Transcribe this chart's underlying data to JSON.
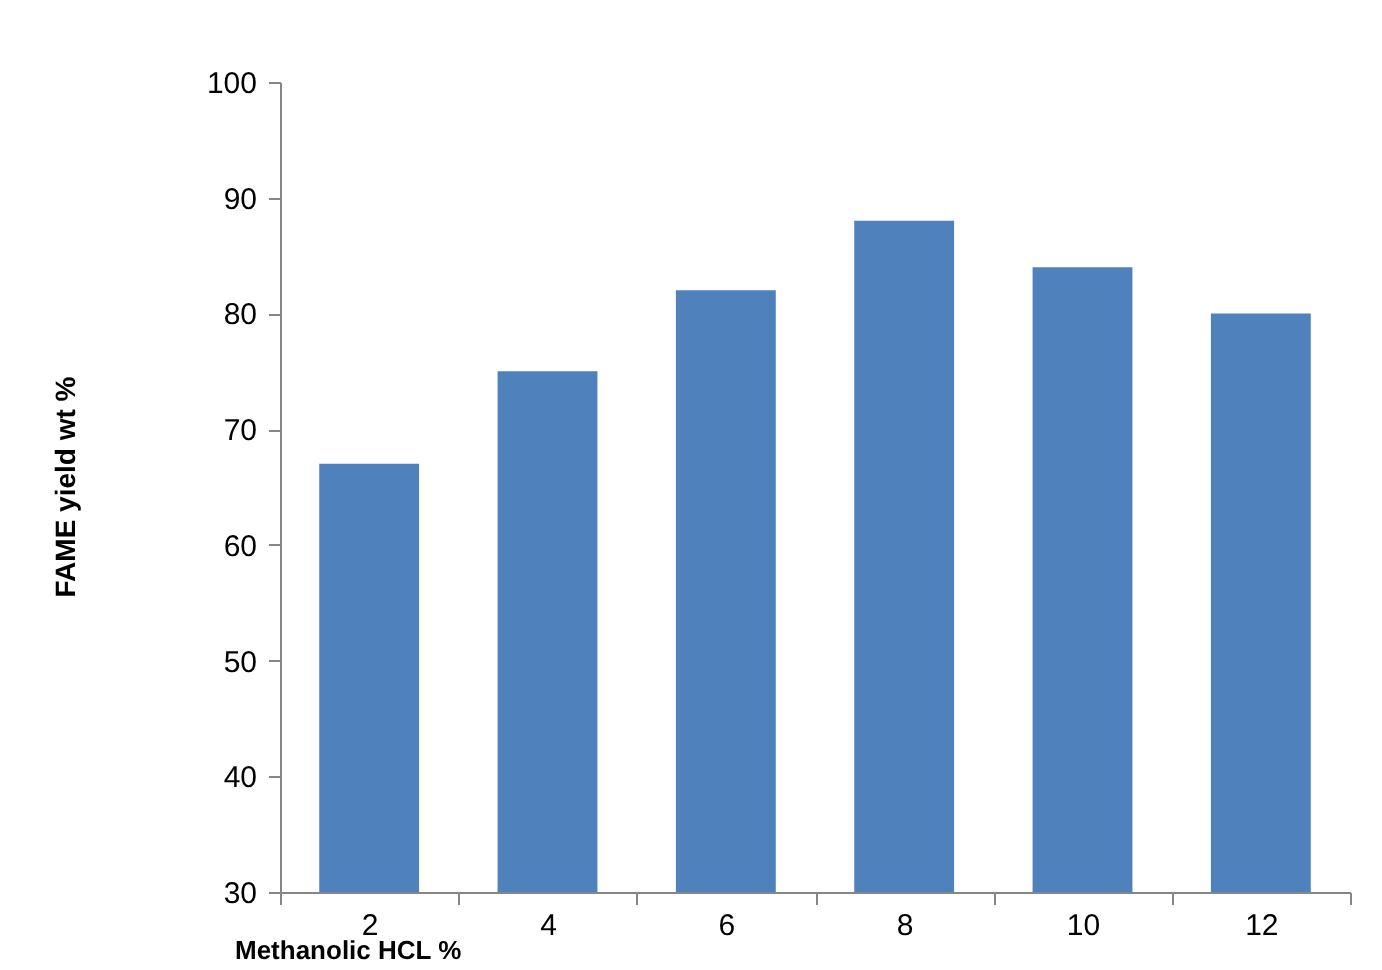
{
  "chart_data": {
    "type": "bar",
    "xlabel": "Methanolic HCL %",
    "ylabel": "FAME yield wt %",
    "categories": [
      "2",
      "4",
      "6",
      "8",
      "10",
      "12"
    ],
    "values": [
      67,
      75,
      82,
      88,
      84,
      80
    ],
    "color": "#4f81bd",
    "ylim": [
      30,
      100
    ],
    "yticks": [
      30,
      40,
      50,
      60,
      70,
      80,
      90,
      100
    ],
    "grid": false
  }
}
